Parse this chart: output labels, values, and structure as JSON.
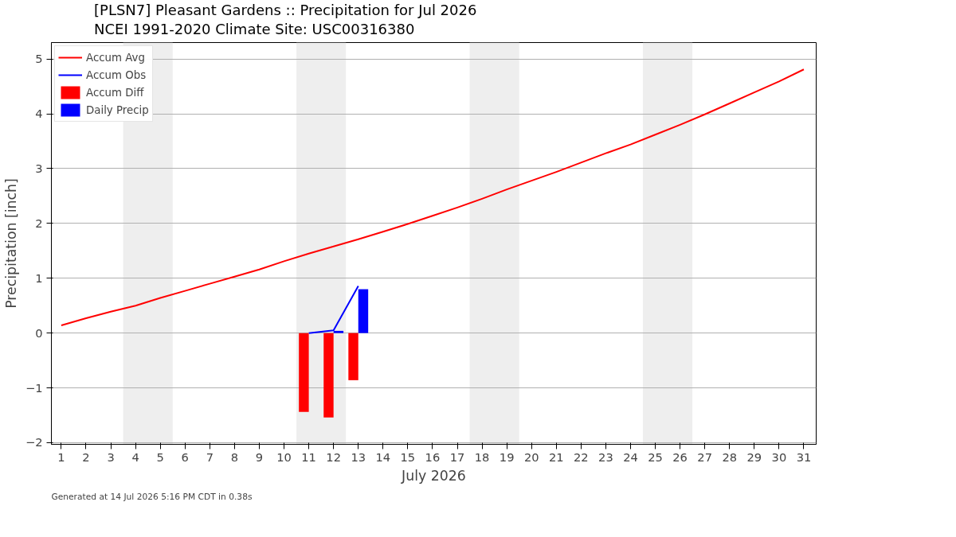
{
  "chart_data": {
    "type": "line",
    "title": "[PLSN7] Pleasant Gardens :: Precipitation for Jul 2026",
    "subtitle": "NCEI 1991-2020 Climate Site: USC00316380",
    "xlabel": "July 2026",
    "ylabel": "Precipitation [inch]",
    "series": [
      {
        "name": "Accum Avg",
        "color": "#ff0000",
        "x": [
          1,
          2,
          3,
          4,
          5,
          6,
          7,
          8,
          9,
          10,
          11,
          12,
          13,
          14,
          15,
          16,
          17,
          18,
          19,
          20,
          21,
          22,
          23,
          24,
          25,
          26,
          27,
          28,
          29,
          30,
          31
        ],
        "values": [
          0.14,
          0.27,
          0.39,
          0.5,
          0.64,
          0.77,
          0.9,
          1.03,
          1.16,
          1.31,
          1.45,
          1.58,
          1.71,
          1.85,
          1.99,
          2.14,
          2.29,
          2.45,
          2.62,
          2.78,
          2.94,
          3.11,
          3.28,
          3.44,
          3.62,
          3.8,
          3.99,
          4.19,
          4.39,
          4.59,
          4.81
        ]
      },
      {
        "name": "Accum Obs",
        "color": "#0000ff",
        "x": [
          11,
          12,
          13
        ],
        "values": [
          0.0,
          0.05,
          0.86
        ]
      },
      {
        "name": "Accum Diff",
        "type": "bar",
        "color": "#ff0000",
        "x": [
          11,
          12,
          13
        ],
        "values": [
          -1.44,
          -1.54,
          -0.86
        ]
      },
      {
        "name": "Daily Precip",
        "type": "bar",
        "color": "#0000ff",
        "x": [
          11,
          12,
          13
        ],
        "values": [
          0.0,
          0.04,
          0.8
        ]
      }
    ],
    "bands": [
      {
        "axis": "x",
        "from": 3.5,
        "to": 5.5,
        "color": "#eeeeee"
      },
      {
        "axis": "x",
        "from": 10.5,
        "to": 12.5,
        "color": "#eeeeee"
      },
      {
        "axis": "x",
        "from": 17.5,
        "to": 19.5,
        "color": "#eeeeee"
      },
      {
        "axis": "x",
        "from": 24.5,
        "to": 26.5,
        "color": "#eeeeee"
      }
    ],
    "xlim": [
      0.6,
      31.5
    ],
    "xticks": [
      1,
      2,
      3,
      4,
      5,
      6,
      7,
      8,
      9,
      10,
      11,
      12,
      13,
      14,
      15,
      16,
      17,
      18,
      19,
      20,
      21,
      22,
      23,
      24,
      25,
      26,
      27,
      28,
      29,
      30,
      31
    ],
    "ylim": [
      -2.03,
      5.3
    ],
    "yticks": [
      {
        "value": -2,
        "label": "−2"
      },
      {
        "value": -1,
        "label": "−1"
      },
      0,
      1,
      2,
      3,
      4,
      5
    ],
    "grid": "y",
    "legend": "top left",
    "line_style": "solid",
    "marker": "none",
    "annotations": [
      "Generated at 14 Jul 2026 5:16 PM CDT in 0.38s"
    ]
  }
}
